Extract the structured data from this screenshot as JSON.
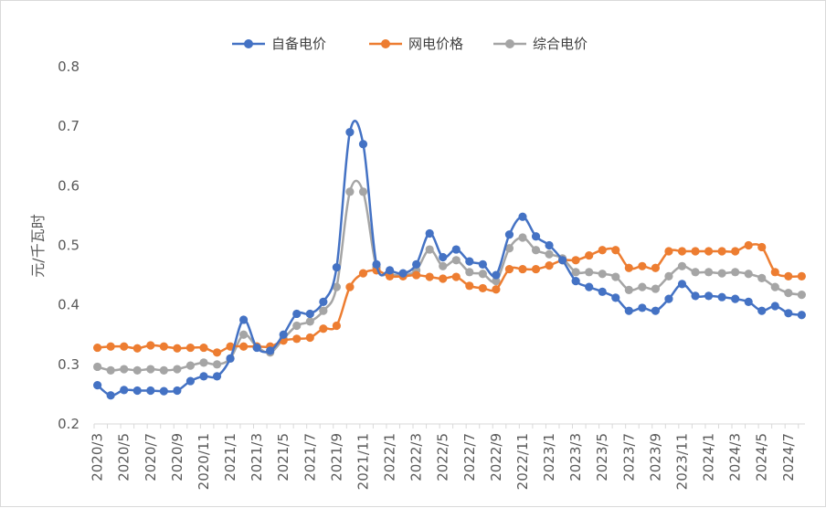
{
  "chart_data": {
    "type": "line",
    "ylabel": "元/千瓦时",
    "ylim": [
      0.2,
      0.8
    ],
    "yticks": [
      "0.2",
      "0.3",
      "0.4",
      "0.5",
      "0.6",
      "0.7",
      "0.8"
    ],
    "legend_position": "top",
    "grid": false,
    "x": [
      "2020/3",
      "2020/4",
      "2020/5",
      "2020/6",
      "2020/7",
      "2020/8",
      "2020/9",
      "2020/10",
      "2020/11",
      "2020/12",
      "2021/1",
      "2021/2",
      "2021/3",
      "2021/4",
      "2021/5",
      "2021/6",
      "2021/7",
      "2021/8",
      "2021/9",
      "2021/10",
      "2021/11",
      "2021/12",
      "2022/1",
      "2022/2",
      "2022/3",
      "2022/4",
      "2022/5",
      "2022/6",
      "2022/7",
      "2022/8",
      "2022/9",
      "2022/10",
      "2022/11",
      "2022/12",
      "2023/1",
      "2023/2",
      "2023/3",
      "2023/4",
      "2023/5",
      "2023/6",
      "2023/7",
      "2023/8",
      "2023/9",
      "2023/10",
      "2023/11",
      "2023/12",
      "2024/1",
      "2024/2",
      "2024/3",
      "2024/4",
      "2024/5",
      "2024/6",
      "2024/7",
      "2024/8"
    ],
    "x_tick_labels": [
      "2020/3",
      "2020/5",
      "2020/7",
      "2020/9",
      "2020/11",
      "2021/1",
      "2021/3",
      "2021/5",
      "2021/7",
      "2021/9",
      "2021/11",
      "2022/1",
      "2022/3",
      "2022/5",
      "2022/7",
      "2022/9",
      "2022/11",
      "2023/1",
      "2023/3",
      "2023/5",
      "2023/7",
      "2023/9",
      "2023/11",
      "2024/1",
      "2024/3",
      "2024/5",
      "2024/7"
    ],
    "series": [
      {
        "name": "自备电价",
        "color": "#4472c4",
        "values": [
          0.265,
          0.248,
          0.257,
          0.256,
          0.256,
          0.255,
          0.256,
          0.272,
          0.28,
          0.28,
          0.31,
          0.375,
          0.328,
          0.323,
          0.35,
          0.385,
          0.385,
          0.405,
          0.463,
          0.69,
          0.67,
          0.468,
          0.458,
          0.453,
          0.468,
          0.52,
          0.48,
          0.493,
          0.473,
          0.468,
          0.45,
          0.518,
          0.548,
          0.515,
          0.5,
          0.475,
          0.44,
          0.43,
          0.422,
          0.412,
          0.39,
          0.395,
          0.39,
          0.41,
          0.435,
          0.415,
          0.415,
          0.413,
          0.41,
          0.405,
          0.39,
          0.398,
          0.386,
          0.383
        ]
      },
      {
        "name": "网电价格",
        "color": "#ed7d31",
        "values": [
          0.328,
          0.33,
          0.33,
          0.327,
          0.332,
          0.33,
          0.327,
          0.328,
          0.328,
          0.32,
          0.33,
          0.33,
          0.33,
          0.33,
          0.34,
          0.343,
          0.345,
          0.36,
          0.365,
          0.43,
          0.453,
          0.458,
          0.448,
          0.448,
          0.45,
          0.447,
          0.444,
          0.447,
          0.432,
          0.428,
          0.426,
          0.46,
          0.46,
          0.46,
          0.466,
          0.475,
          0.475,
          0.483,
          0.492,
          0.492,
          0.462,
          0.465,
          0.462,
          0.49,
          0.49,
          0.49,
          0.49,
          0.49,
          0.49,
          0.5,
          0.497,
          0.455,
          0.448,
          0.448
        ]
      },
      {
        "name": "综合电价",
        "color": "#a5a5a5",
        "values": [
          0.296,
          0.29,
          0.292,
          0.29,
          0.292,
          0.29,
          0.292,
          0.298,
          0.303,
          0.3,
          0.31,
          0.35,
          0.33,
          0.32,
          0.343,
          0.365,
          0.372,
          0.39,
          0.43,
          0.59,
          0.59,
          0.463,
          0.452,
          0.45,
          0.458,
          0.493,
          0.465,
          0.475,
          0.455,
          0.452,
          0.44,
          0.495,
          0.513,
          0.492,
          0.485,
          0.478,
          0.455,
          0.455,
          0.452,
          0.447,
          0.425,
          0.43,
          0.427,
          0.448,
          0.465,
          0.455,
          0.455,
          0.453,
          0.455,
          0.452,
          0.445,
          0.43,
          0.42,
          0.417
        ]
      }
    ]
  }
}
